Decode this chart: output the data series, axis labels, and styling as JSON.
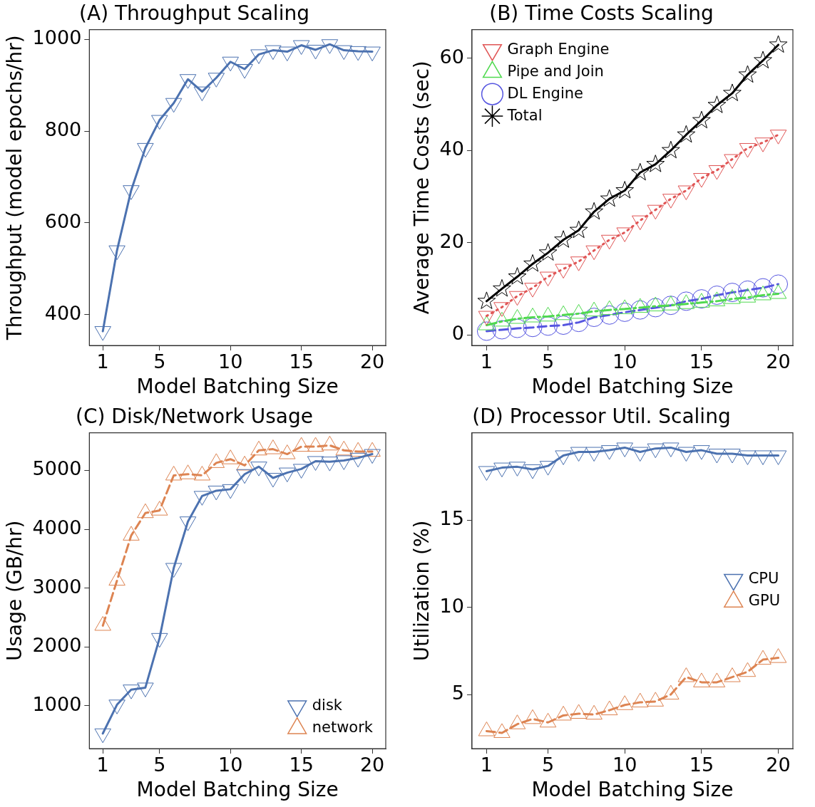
{
  "chart_data": [
    {
      "type": "line",
      "title": "(A) Throughput Scaling",
      "xlabel": "Model Batching Size",
      "ylabel": "Throughput (model epochs/hr)",
      "x": [
        1,
        2,
        3,
        4,
        5,
        6,
        7,
        8,
        9,
        10,
        11,
        12,
        13,
        14,
        15,
        16,
        17,
        18,
        19,
        20
      ],
      "xlim": [
        0.05,
        20.95
      ],
      "xticks": [
        1,
        5,
        10,
        15,
        20
      ],
      "ylim": [
        333,
        1021
      ],
      "yticks": [
        400,
        600,
        800,
        1000
      ],
      "grid": false,
      "legend": false,
      "series": [
        {
          "color": "#4c72b0",
          "marker": "triangle_down",
          "line_style": "solid",
          "values": [
            364,
            540,
            671,
            763,
            824,
            861,
            913,
            886,
            916,
            951,
            935,
            967,
            976,
            973,
            987,
            977,
            989,
            976,
            974,
            973
          ]
        }
      ]
    },
    {
      "type": "line",
      "title": "(B) Time Costs Scaling",
      "xlabel": "Model Batching Size",
      "ylabel": "Average Time Costs (sec)",
      "x": [
        1,
        2,
        3,
        4,
        5,
        6,
        7,
        8,
        9,
        10,
        11,
        12,
        13,
        14,
        15,
        16,
        17,
        18,
        19,
        20
      ],
      "xlim": [
        0.05,
        20.95
      ],
      "xticks": [
        1,
        5,
        10,
        15,
        20
      ],
      "ylim": [
        -2.3,
        66.2
      ],
      "yticks": [
        0,
        20,
        40,
        60
      ],
      "grid": false,
      "legend": "top left",
      "series": [
        {
          "name": "Graph Engine",
          "color": "#e05555",
          "marker": "triangle_down",
          "line_style": "dotted",
          "values": [
            4.1,
            6.0,
            8.4,
            10.2,
            12.6,
            14.3,
            15.9,
            18.3,
            20.6,
            22.2,
            24.8,
            27.1,
            29.5,
            31.3,
            34.0,
            35.7,
            38.1,
            40.5,
            41.7,
            43.4
          ]
        },
        {
          "name": "Pipe and Join",
          "color": "#4fd94f",
          "marker": "triangle",
          "line_style": "dashdot",
          "values": [
            2.1,
            2.9,
            3.5,
            3.8,
            4.0,
            4.3,
            4.6,
            5.1,
            5.4,
            5.6,
            5.9,
            6.2,
            6.4,
            6.7,
            7.0,
            7.3,
            7.8,
            8.1,
            8.6,
            8.9
          ]
        },
        {
          "name": "DL Engine",
          "color": "#5555e0",
          "marker": "circle",
          "line_style": "dashed",
          "values": [
            0.8,
            1.1,
            1.4,
            1.6,
            1.9,
            2.1,
            2.7,
            3.8,
            4.3,
            4.9,
            5.4,
            5.9,
            6.4,
            7.3,
            7.8,
            8.6,
            9.2,
            9.7,
            10.2,
            11.0
          ]
        },
        {
          "name": "Total",
          "color": "#000000",
          "marker": "star",
          "line_style": "solid",
          "values": [
            7.3,
            10.0,
            12.6,
            15.4,
            17.8,
            20.6,
            22.7,
            26.7,
            29.5,
            31.3,
            35.2,
            37.0,
            40.0,
            43.4,
            46.5,
            49.8,
            52.4,
            56.4,
            59.5,
            62.9
          ]
        }
      ]
    },
    {
      "type": "line",
      "title": "(C) Disk/Network Usage",
      "xlabel": "Model Batching Size",
      "ylabel": "Usage (GB/hr)",
      "x": [
        1,
        2,
        3,
        4,
        5,
        6,
        7,
        8,
        9,
        10,
        11,
        12,
        13,
        14,
        15,
        16,
        17,
        18,
        19,
        20
      ],
      "xlim": [
        0.05,
        20.95
      ],
      "xticks": [
        1,
        5,
        10,
        15,
        20
      ],
      "ylim": [
        270,
        5640
      ],
      "yticks": [
        1000,
        2000,
        3000,
        4000,
        5000
      ],
      "grid": false,
      "legend": "bottom right",
      "series": [
        {
          "name": "disk",
          "color": "#4c72b0",
          "marker": "triangle_down",
          "line_style": "solid",
          "values": [
            527,
            1017,
            1273,
            1306,
            2149,
            3340,
            4131,
            4565,
            4655,
            4680,
            4936,
            5064,
            4872,
            4962,
            5025,
            5157,
            5149,
            5170,
            5213,
            5277
          ]
        },
        {
          "name": "network",
          "color": "#dd8452",
          "marker": "triangle",
          "line_style": "dashed",
          "values": [
            2360,
            3127,
            3893,
            4276,
            4319,
            4915,
            4936,
            4915,
            5128,
            5191,
            5085,
            5341,
            5362,
            5277,
            5404,
            5404,
            5426,
            5341,
            5319,
            5319
          ]
        }
      ]
    },
    {
      "type": "line",
      "title": "(D) Processor Util. Scaling",
      "xlabel": "Model Batching Size",
      "ylabel": "Utilization (%)",
      "x": [
        1,
        2,
        3,
        4,
        5,
        6,
        7,
        8,
        9,
        10,
        11,
        12,
        13,
        14,
        15,
        16,
        17,
        18,
        19,
        20
      ],
      "xlim": [
        0.05,
        20.95
      ],
      "xticks": [
        1,
        5,
        10,
        15,
        20
      ],
      "ylim": [
        1.9,
        20.0
      ],
      "yticks": [
        5,
        10,
        15
      ],
      "grid": false,
      "legend": "right",
      "series": [
        {
          "name": "CPU",
          "color": "#4c72b0",
          "marker": "triangle_down",
          "line_style": "solid",
          "values": [
            17.8,
            18.0,
            18.05,
            17.9,
            18.1,
            18.7,
            18.9,
            18.9,
            19.0,
            19.15,
            18.9,
            19.1,
            19.15,
            18.9,
            19.0,
            18.8,
            18.8,
            18.7,
            18.7,
            18.7
          ]
        },
        {
          "name": "GPU",
          "color": "#dd8452",
          "marker": "triangle",
          "line_style": "dashed",
          "values": [
            2.9,
            2.8,
            3.3,
            3.6,
            3.4,
            3.8,
            3.9,
            3.85,
            4.1,
            4.4,
            4.55,
            4.6,
            5.0,
            6.0,
            5.7,
            5.7,
            6.0,
            6.3,
            7.0,
            7.1
          ]
        }
      ]
    }
  ]
}
